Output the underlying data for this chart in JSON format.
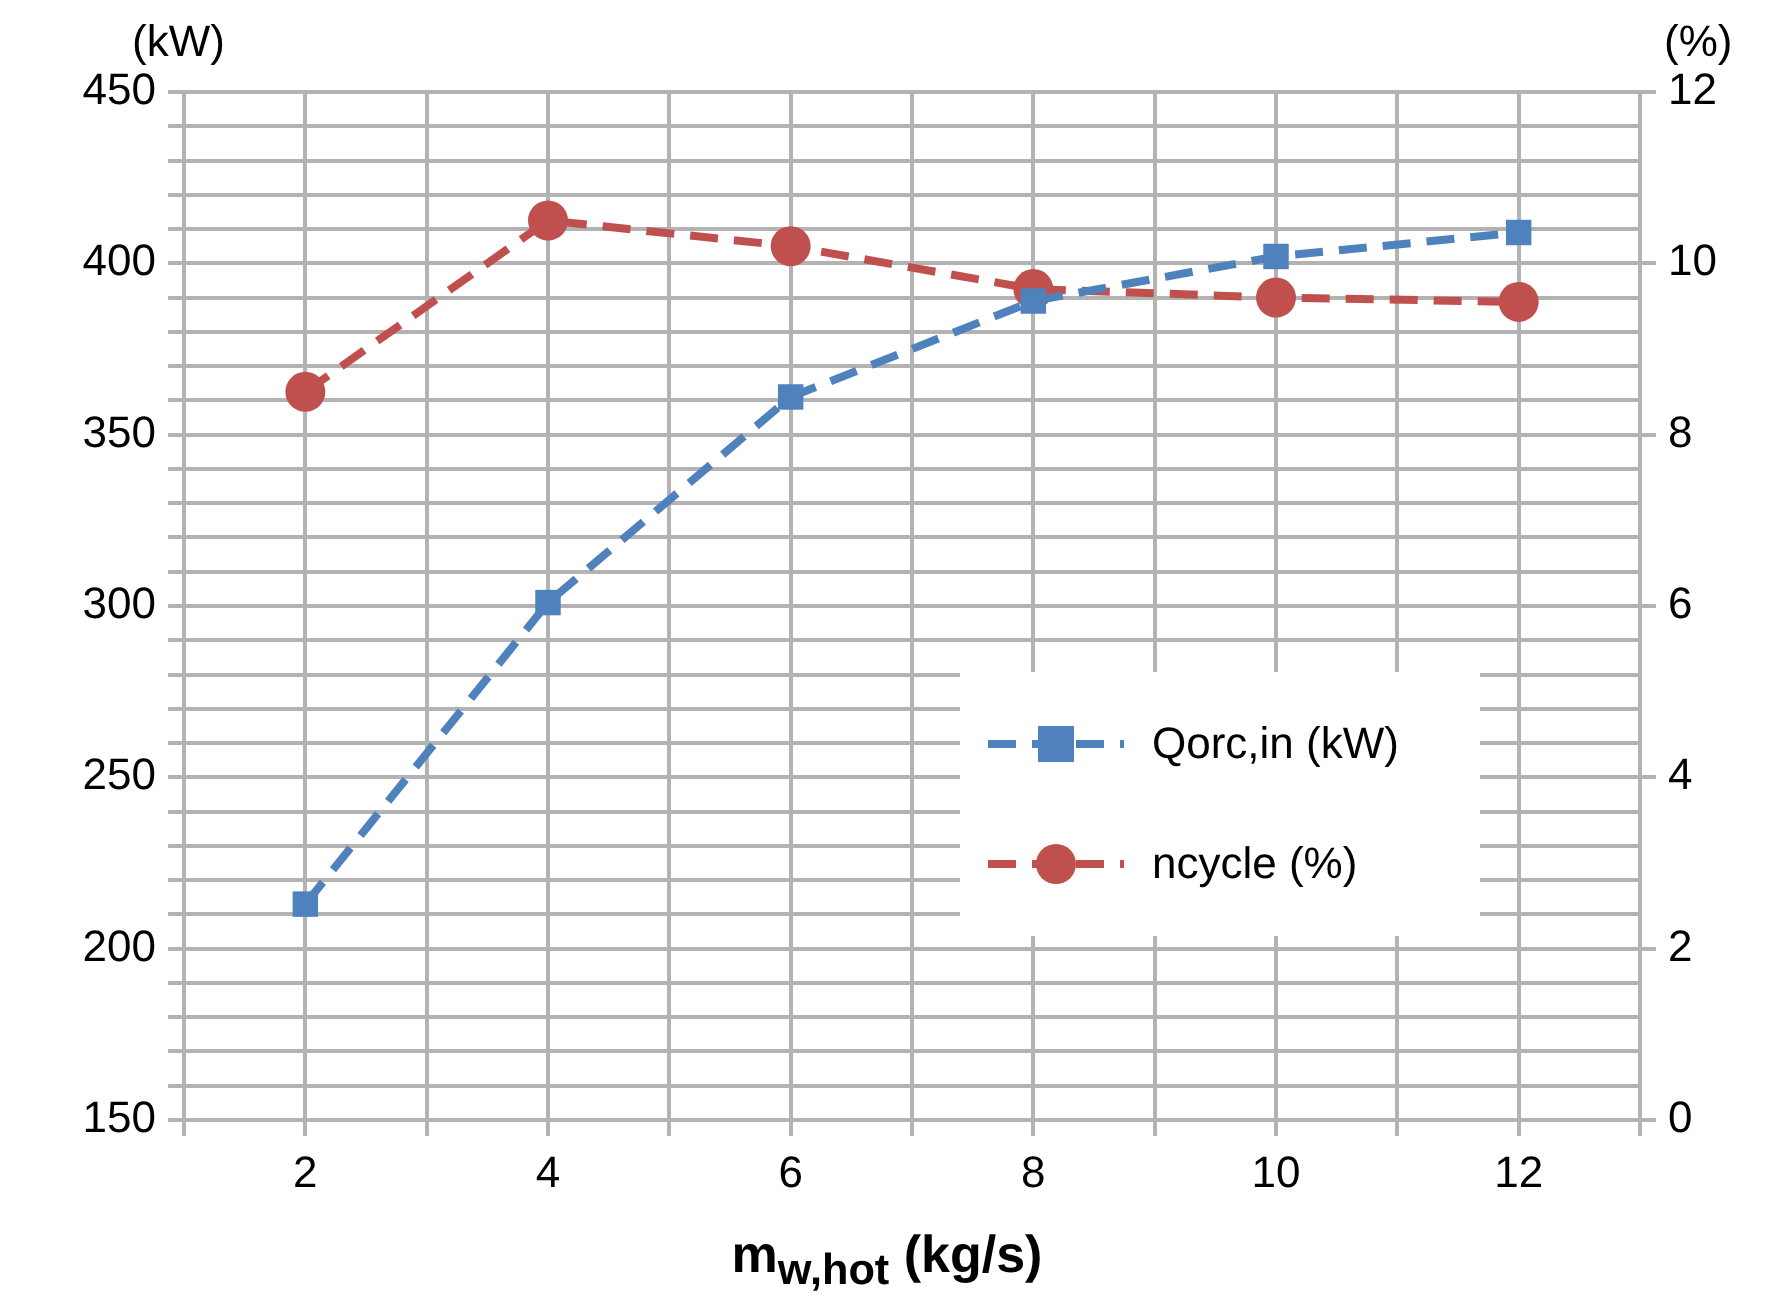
{
  "chart_data": {
    "type": "line",
    "xlabel": "m$_{w,hot}$ (kg/s)",
    "ylabel": "(kW)",
    "y2label": "(%)",
    "x": [
      2,
      4,
      6,
      8,
      10,
      12
    ],
    "xlim": [
      1,
      13
    ],
    "xticks": [
      {
        "value": 1,
        "label": null
      },
      2,
      {
        "value": 3,
        "label": null
      },
      4,
      {
        "value": 5,
        "label": null
      },
      6,
      {
        "value": 7,
        "label": null
      },
      8,
      {
        "value": 9,
        "label": null
      },
      10,
      {
        "value": 11,
        "label": null
      },
      12,
      {
        "value": 13,
        "label": null
      }
    ],
    "ylim": [
      150,
      450
    ],
    "yticks": [
      150,
      {
        "value": 160,
        "label": null
      },
      {
        "value": 170,
        "label": null
      },
      {
        "value": 180,
        "label": null
      },
      {
        "value": 190,
        "label": null
      },
      200,
      {
        "value": 210,
        "label": null
      },
      {
        "value": 220,
        "label": null
      },
      {
        "value": 230,
        "label": null
      },
      {
        "value": 240,
        "label": null
      },
      250,
      {
        "value": 260,
        "label": null
      },
      {
        "value": 270,
        "label": null
      },
      {
        "value": 280,
        "label": null
      },
      {
        "value": 290,
        "label": null
      },
      300,
      {
        "value": 310,
        "label": null
      },
      {
        "value": 320,
        "label": null
      },
      {
        "value": 330,
        "label": null
      },
      {
        "value": 340,
        "label": null
      },
      350,
      {
        "value": 360,
        "label": null
      },
      {
        "value": 370,
        "label": null
      },
      {
        "value": 380,
        "label": null
      },
      {
        "value": 390,
        "label": null
      },
      400,
      {
        "value": 410,
        "label": null
      },
      {
        "value": 420,
        "label": null
      },
      {
        "value": 430,
        "label": null
      },
      {
        "value": 440,
        "label": null
      },
      450
    ],
    "y2lim": [
      0,
      12
    ],
    "y2ticks": [
      0,
      2,
      4,
      6,
      8,
      10,
      12
    ],
    "series": [
      {
        "name": "Qorc,in (kW)",
        "color": "#4f81bd",
        "marker": "square",
        "values": [
          213,
          301,
          361,
          389,
          402,
          409
        ]
      },
      {
        "name": "ncycle (%)",
        "color": "#c0504d",
        "marker": "circle",
        "axis": "y2",
        "values": [
          8.5,
          10.5,
          10.2,
          9.7,
          9.6,
          9.55
        ]
      }
    ],
    "grid": true,
    "legend": "right",
    "line_style": "dashed"
  }
}
